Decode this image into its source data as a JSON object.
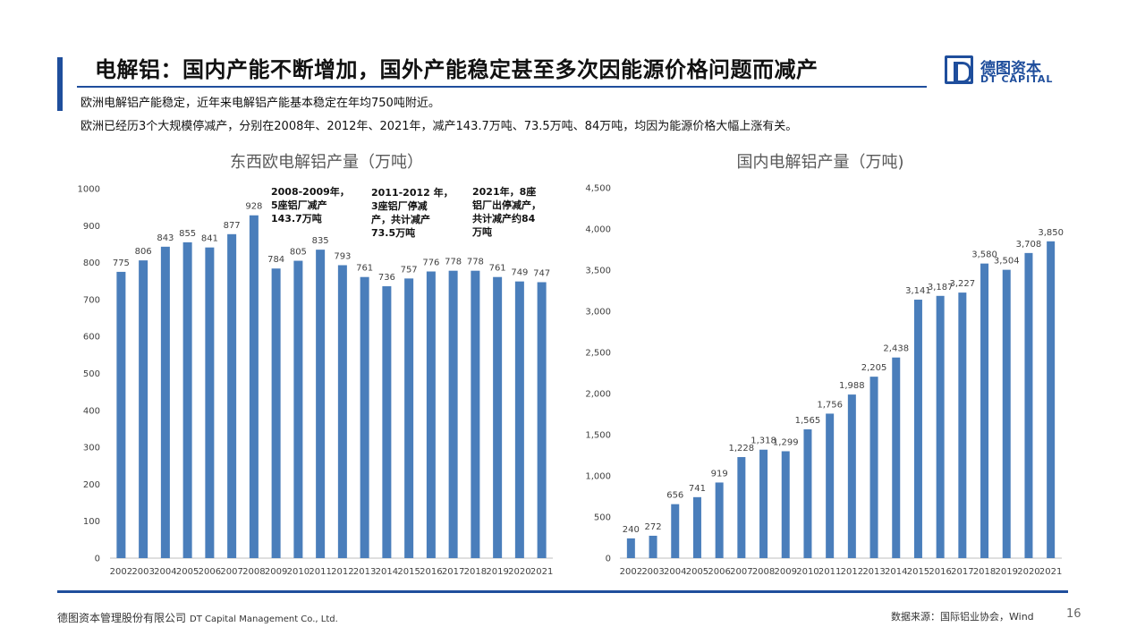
{
  "header": {
    "title": "电解铝：国内产能不断增加，国外产能稳定甚至多次因能源价格问题而减产",
    "subtitle_1": "欧洲电解铝产能稳定，近年来电解铝产能基本稳定在年均750吨附近。",
    "subtitle_2": "欧洲已经历3个大规模停减产，分别在2008年、2012年、2021年，减产143.7万吨、73.5万吨、84万吨，均因为能源价格大幅上涨有关。"
  },
  "logo": {
    "cn": "德图资本",
    "en": "DT CAPITAL",
    "brand_color": "#1f4e9c"
  },
  "annotations": [
    {
      "lines": [
        "2008-2009年，",
        "5座铝厂减产",
        "143.7万吨"
      ]
    },
    {
      "lines": [
        "2011-2012 年，",
        "3座铝厂停减",
        "产，共计减产",
        "73.5万吨"
      ]
    },
    {
      "lines": [
        "2021年，8座",
        "铝厂出停减产，",
        "共计减产约84",
        "万吨"
      ]
    }
  ],
  "chart_data": [
    {
      "type": "bar",
      "title": "东西欧电解铝产量（万吨）",
      "categories": [
        "2002",
        "2003",
        "2004",
        "2005",
        "2006",
        "2007",
        "2008",
        "2009",
        "2010",
        "2011",
        "2012",
        "2013",
        "2014",
        "2015",
        "2016",
        "2017",
        "2018",
        "2019",
        "2020",
        "2021"
      ],
      "values": [
        775,
        806,
        843,
        855,
        841,
        877,
        928,
        784,
        805,
        835,
        793,
        761,
        736,
        757,
        776,
        778,
        778,
        761,
        749,
        747
      ],
      "ylim": [
        0,
        1000
      ],
      "yticks": [
        0,
        100,
        200,
        300,
        400,
        500,
        600,
        700,
        800,
        900,
        1000
      ],
      "ytick_labels": [
        "0",
        "100",
        "200",
        "300",
        "400",
        "500",
        "600",
        "700",
        "800",
        "900",
        "1000"
      ],
      "data_labels": [
        "775",
        "806",
        "843",
        "855",
        "841",
        "877",
        "928",
        "784",
        "805",
        "835",
        "793",
        "761",
        "736",
        "757",
        "776",
        "778",
        "778",
        "761",
        "749",
        "747"
      ],
      "bar_color": "#4a7ebb",
      "grid": false
    },
    {
      "type": "bar",
      "title": "国内电解铝产量（万吨)",
      "categories": [
        "2002",
        "2003",
        "2004",
        "2005",
        "2006",
        "2007",
        "2008",
        "2009",
        "2010",
        "2011",
        "2012",
        "2013",
        "2014",
        "2015",
        "2016",
        "2017",
        "2018",
        "2019",
        "2020",
        "2021"
      ],
      "values": [
        240,
        272,
        656,
        741,
        919,
        1228,
        1318,
        1299,
        1565,
        1756,
        1988,
        2205,
        2438,
        3141,
        3187,
        3227,
        3580,
        3504,
        3708,
        3850
      ],
      "ylim": [
        0,
        4500
      ],
      "yticks": [
        0,
        500,
        1000,
        1500,
        2000,
        2500,
        3000,
        3500,
        4000,
        4500
      ],
      "ytick_labels": [
        "0",
        "500",
        "1,000",
        "1,500",
        "2,000",
        "2,500",
        "3,000",
        "3,500",
        "4,000",
        "4,500"
      ],
      "data_labels": [
        "240",
        "272",
        "656",
        "741",
        "919",
        "1,228",
        "1,318",
        "1,299",
        "1,565",
        "1,756",
        "1,988",
        "2,205",
        "2,438",
        "3,141",
        "3,187",
        "3,227",
        "3,580",
        "3,504",
        "3,708",
        "3,850"
      ],
      "bar_color": "#4a7ebb",
      "grid": false
    }
  ],
  "footer": {
    "company_cn": "德图资本管理股份有限公司",
    "company_en": "DT Capital Management Co., Ltd.",
    "source": "数据来源：国际铝业协会，Wind",
    "page_number": "16"
  }
}
